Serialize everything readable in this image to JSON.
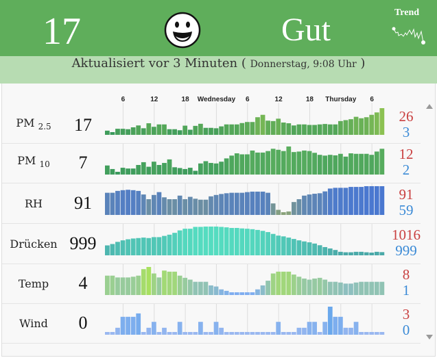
{
  "header": {
    "aqi": "17",
    "mood_icon": "smiley-face-icon",
    "status": "Gut",
    "trend_label": "Trend",
    "background": "#5fae5b"
  },
  "updated": {
    "text": "Aktualisiert vor 3 Minuten ( ",
    "detail": "Donnerstag, 9:08 Uhr",
    "close": " )"
  },
  "timeline": [
    {
      "label": "6",
      "index": 3
    },
    {
      "label": "12",
      "index": 9
    },
    {
      "label": "18",
      "index": 15
    },
    {
      "label": "Wednesday",
      "index": 21
    },
    {
      "label": "6",
      "index": 27
    },
    {
      "label": "12",
      "index": 33
    },
    {
      "label": "18",
      "index": 39
    },
    {
      "label": "Thursday",
      "index": 45
    },
    {
      "label": "6",
      "index": 51
    }
  ],
  "rows": [
    {
      "label": "PM",
      "sub": "2.5",
      "value": "17",
      "max": "26",
      "min": "3",
      "colors": [
        "#3a9a5c",
        "#8cc152"
      ],
      "values": [
        4.4,
        3,
        6.2,
        6.2,
        5.8,
        7.6,
        9.4,
        6.7,
        11.5,
        8.1,
        10.4,
        10.4,
        5.8,
        5.8,
        4.8,
        9.2,
        5.3,
        9,
        11,
        7.1,
        7.1,
        6.7,
        8.5,
        10.4,
        10.4,
        10.4,
        11.7,
        12.7,
        12.7,
        17.3,
        19.6,
        14,
        13.6,
        15.9,
        12.2,
        11.5,
        9.4,
        10.4,
        10.4,
        9.9,
        9.9,
        10.4,
        10.8,
        10.4,
        10.4,
        13.6,
        14.5,
        15.4,
        17.7,
        16.3,
        17.3,
        19.6,
        21.9,
        26
      ]
    },
    {
      "label": "PM",
      "sub": "10",
      "value": "7",
      "max": "12",
      "min": "2",
      "colors": [
        "#3a9a5c",
        "#5aae5e"
      ],
      "values": [
        4.5,
        3.1,
        2,
        3.6,
        3.3,
        3.3,
        4.7,
        5.8,
        4,
        6,
        4.7,
        5.5,
        6.9,
        3.8,
        3.5,
        3.1,
        3.6,
        2.4,
        5.3,
        6.2,
        5.5,
        5.3,
        6,
        7.3,
        8.4,
        9.3,
        8.9,
        8.9,
        10.4,
        9.6,
        9.6,
        10.2,
        11.1,
        10.7,
        10.2,
        12,
        9.8,
        10,
        10.4,
        10.2,
        9.5,
        8.7,
        8.4,
        8.7,
        8.5,
        9.1,
        8,
        9.3,
        9.1,
        9.1,
        9.1,
        8.7,
        10,
        11.1
      ]
    },
    {
      "label": "RH",
      "value": "91",
      "max": "91",
      "min": "59",
      "colors": [
        "#8aa37a",
        "#4a78d0"
      ],
      "values": [
        82.9,
        82.9,
        85.2,
        86.1,
        86.6,
        86.1,
        85.2,
        80.8,
        75,
        80.2,
        83.7,
        77.3,
        75,
        75,
        79.4,
        75,
        77.9,
        75.6,
        74.4,
        74.4,
        78.5,
        80.2,
        81.4,
        82.3,
        82.9,
        82.9,
        82.9,
        83.7,
        84.3,
        84.3,
        84.3,
        82.9,
        69.8,
        61.9,
        59,
        59.9,
        71.5,
        75,
        79.4,
        80.8,
        81.7,
        82.3,
        84.6,
        88.1,
        89,
        89,
        89,
        90.1,
        90.1,
        90.1,
        91,
        91,
        91,
        91
      ]
    },
    {
      "label": "Drücken",
      "value": "999",
      "max": "1016",
      "min": "999",
      "colors": [
        "#4aa8a8",
        "#55dcc0"
      ],
      "values": [
        1003.7,
        1004.6,
        1006,
        1007,
        1007.7,
        1008.2,
        1008.5,
        1008.8,
        1008.5,
        1009.1,
        1009.1,
        1009.9,
        1010.7,
        1011.9,
        1013.5,
        1014.6,
        1014.6,
        1015.8,
        1015.8,
        1016,
        1016,
        1016,
        1015.8,
        1015.5,
        1015.1,
        1015.1,
        1014.8,
        1014.6,
        1014.3,
        1013.8,
        1013.2,
        1012.4,
        1011.2,
        1010.1,
        1009.6,
        1008.8,
        1007.9,
        1007,
        1006.3,
        1005.7,
        1004.9,
        1003.8,
        1002.6,
        1001.7,
        1000.7,
        999.5,
        999.2,
        999.2,
        999.5,
        999.5,
        999.2,
        999,
        999.5,
        999.3
      ]
    },
    {
      "label": "Temp",
      "value": "4",
      "max": "8",
      "min": "1",
      "colors": [
        "#80aef0",
        "#a8e060"
      ],
      "values": [
        5.6,
        5.6,
        5.1,
        5.1,
        5.1,
        5.3,
        5.6,
        7.4,
        8,
        6.2,
        5.1,
        7,
        6.7,
        6.7,
        5.6,
        5,
        4.5,
        3.9,
        3.9,
        3.9,
        2.9,
        2.6,
        1.8,
        1.4,
        1,
        1,
        1,
        1,
        1,
        1.8,
        2.9,
        4.2,
        6.2,
        6.7,
        6.7,
        6.7,
        5.9,
        5.3,
        4.8,
        4.5,
        4.8,
        5,
        4.5,
        3.9,
        3.9,
        3.7,
        3.4,
        3.4,
        3.7,
        3.9,
        3.9,
        3.9,
        3.9,
        3.9
      ]
    },
    {
      "label": "Wind",
      "value": "0",
      "max": "3",
      "min": "0",
      "colors": [
        "#9ab8f0",
        "#6aa8ec"
      ],
      "values": [
        0,
        0,
        0.5,
        1.8,
        1.8,
        1.8,
        2.2,
        0,
        0.5,
        1.2,
        0,
        0.5,
        0,
        0,
        1.2,
        0,
        0,
        0,
        1.2,
        0,
        0,
        1.2,
        0.5,
        0,
        0,
        0,
        0,
        0,
        0,
        0,
        0,
        0,
        0,
        1.2,
        0,
        0,
        0,
        0.5,
        0.5,
        1.2,
        1.2,
        0,
        1.2,
        3,
        1.8,
        1.8,
        0.5,
        0.5,
        1.2,
        0,
        0,
        0,
        0,
        0
      ]
    }
  ]
}
